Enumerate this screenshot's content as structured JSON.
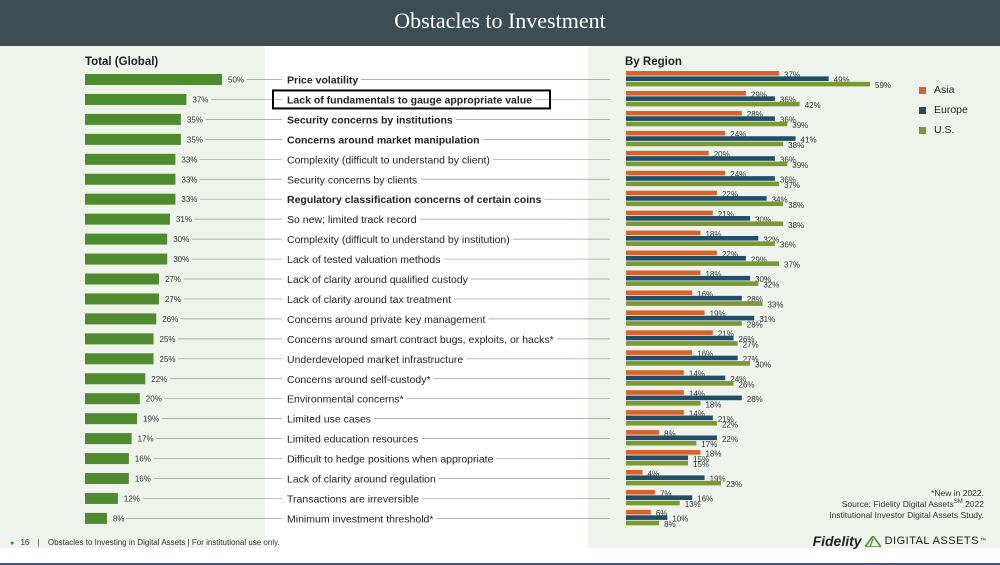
{
  "page": {
    "title": "Obstacles to Investment",
    "left_header": "Total (Global)",
    "right_header": "By Region",
    "legend": [
      {
        "label": "Asia",
        "color": "#d9622b"
      },
      {
        "label": "Europe",
        "color": "#1f4e66"
      },
      {
        "label": "U.S.",
        "color": "#7a9a2f"
      }
    ],
    "note_line1": "*New in 2022.",
    "note_line2": "Source: Fidelity Digital Assets",
    "note_sup": "SM",
    "note_line2b": " 2022",
    "note_line3": "Institutional Investor Digital Assets Study.",
    "footer_page": "16",
    "footer_sep": "|",
    "footer_text": "Obstacles to Investing in Digital Assets  |  For institutional use only.",
    "logo_brand": "Fidelity",
    "logo_rest": "DIGITAL ASSETS",
    "logo_tm": "™"
  },
  "chart_data": [
    {
      "type": "bar",
      "title": "Total (Global)",
      "orientation": "horizontal",
      "color": "#4e8a2e",
      "categories": [
        "Price volatility",
        "Lack of fundamentals to gauge appropriate value",
        "Security concerns by institutions",
        "Concerns around market manipulation",
        "Complexity (difficult to understand by client)",
        "Security concerns by clients",
        "Regulatory classification concerns of certain coins",
        "So new; limited track record",
        "Complexity (difficult to understand by institution)",
        "Lack of tested valuation methods",
        "Lack of clarity around qualified custody",
        "Lack of clarity around tax treatment",
        "Concerns around private key management",
        "Concerns around smart contract bugs, exploits, or hacks*",
        "Underdeveloped market infrastructure",
        "Concerns around self-custody*",
        "Environmental concerns*",
        "Limited use cases",
        "Limited education resources",
        "Difficult to hedge positions when appropriate",
        "Lack of clarity around regulation",
        "Transactions are irreversible",
        "Minimum investment threshold*"
      ],
      "bold": [
        true,
        true,
        true,
        true,
        false,
        false,
        true,
        false,
        false,
        false,
        false,
        false,
        false,
        false,
        false,
        false,
        false,
        false,
        false,
        false,
        false,
        false,
        false
      ],
      "highlighted": "Lack of fundamentals to gauge appropriate value",
      "values": [
        50,
        37,
        35,
        35,
        33,
        33,
        33,
        31,
        30,
        30,
        27,
        27,
        26,
        25,
        25,
        22,
        20,
        19,
        17,
        16,
        16,
        12,
        8
      ],
      "unit": "%"
    },
    {
      "type": "bar",
      "title": "By Region",
      "orientation": "horizontal",
      "unit": "%",
      "series": [
        {
          "name": "Asia",
          "color": "#d9622b",
          "values": [
            37,
            29,
            28,
            24,
            20,
            24,
            22,
            21,
            18,
            22,
            18,
            16,
            19,
            21,
            16,
            14,
            14,
            14,
            8,
            18,
            4,
            7,
            6
          ]
        },
        {
          "name": "Europe",
          "color": "#1f4e66",
          "values": [
            49,
            36,
            36,
            41,
            36,
            36,
            34,
            30,
            32,
            29,
            30,
            28,
            31,
            26,
            27,
            24,
            28,
            21,
            22,
            15,
            19,
            16,
            10
          ]
        },
        {
          "name": "U.S.",
          "color": "#7a9a2f",
          "values": [
            59,
            42,
            39,
            38,
            39,
            37,
            38,
            38,
            36,
            37,
            32,
            33,
            28,
            27,
            30,
            26,
            18,
            22,
            17,
            15,
            23,
            13,
            8
          ]
        }
      ]
    }
  ]
}
